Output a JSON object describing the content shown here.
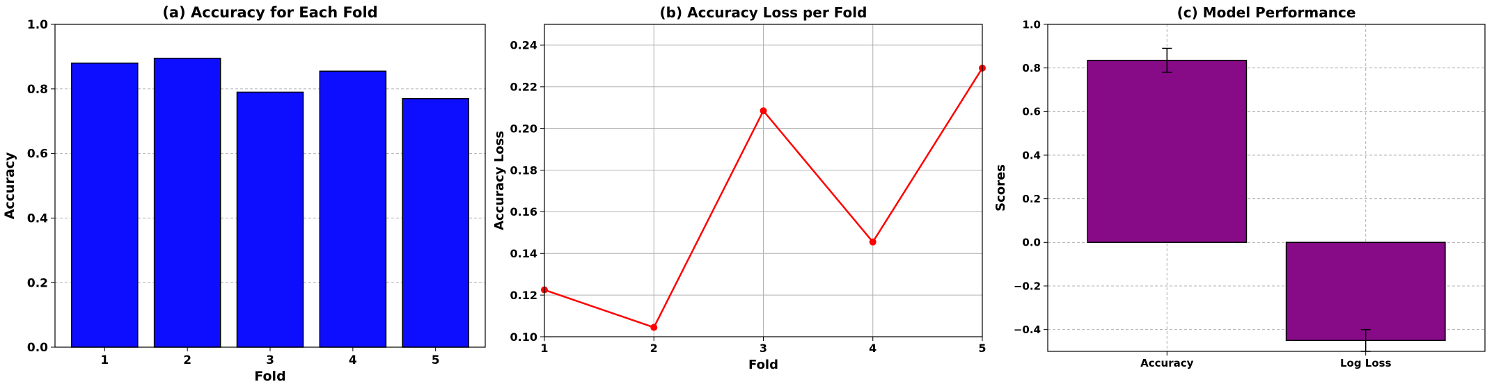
{
  "chart_data": [
    {
      "type": "bar",
      "title": "(a) Accuracy for Each Fold",
      "xlabel": "Fold",
      "ylabel": "Accuracy",
      "categories": [
        "1",
        "2",
        "3",
        "4",
        "5"
      ],
      "values": [
        0.88,
        0.895,
        0.79,
        0.855,
        0.77
      ],
      "ylim": [
        0,
        1.0
      ],
      "yticks": [
        0.0,
        0.2,
        0.4,
        0.6,
        0.8,
        1.0
      ],
      "ytick_labels": [
        "0.0",
        "0.2",
        "0.4",
        "0.6",
        "0.8",
        "1.0"
      ],
      "grid": "y dashed",
      "color": "#0d0dff"
    },
    {
      "type": "line",
      "title": "(b) Accuracy Loss per Fold",
      "xlabel": "Fold",
      "ylabel": "Accuracy Loss",
      "x": [
        1,
        2,
        3,
        4,
        5
      ],
      "values": [
        0.1225,
        0.1045,
        0.2085,
        0.1455,
        0.229
      ],
      "xlim": [
        1,
        5
      ],
      "ylim": [
        0.1,
        0.25
      ],
      "xtick_labels": [
        "1",
        "2",
        "3",
        "4",
        "5"
      ],
      "yticks": [
        0.1,
        0.12,
        0.14,
        0.16,
        0.18,
        0.2,
        0.22,
        0.24
      ],
      "ytick_labels": [
        "0.10",
        "0.12",
        "0.14",
        "0.16",
        "0.18",
        "0.20",
        "0.22",
        "0.24"
      ],
      "grid": "both",
      "color": "#ff0000",
      "marker": "circle"
    },
    {
      "type": "bar",
      "title": "(c) Model Performance",
      "xlabel": "",
      "ylabel": "Scores",
      "categories": [
        "Accuracy",
        "Log Loss"
      ],
      "values": [
        0.835,
        -0.45
      ],
      "errors": [
        0.055,
        0.05
      ],
      "ylim": [
        -0.5,
        1.0
      ],
      "yticks": [
        -0.4,
        -0.2,
        0.0,
        0.2,
        0.4,
        0.6,
        0.8,
        1.0
      ],
      "ytick_labels": [
        "−0.4",
        "−0.2",
        "0.0",
        "0.2",
        "0.4",
        "0.6",
        "0.8",
        "1.0"
      ],
      "grid": "both dashed",
      "color": "#870b87"
    }
  ]
}
